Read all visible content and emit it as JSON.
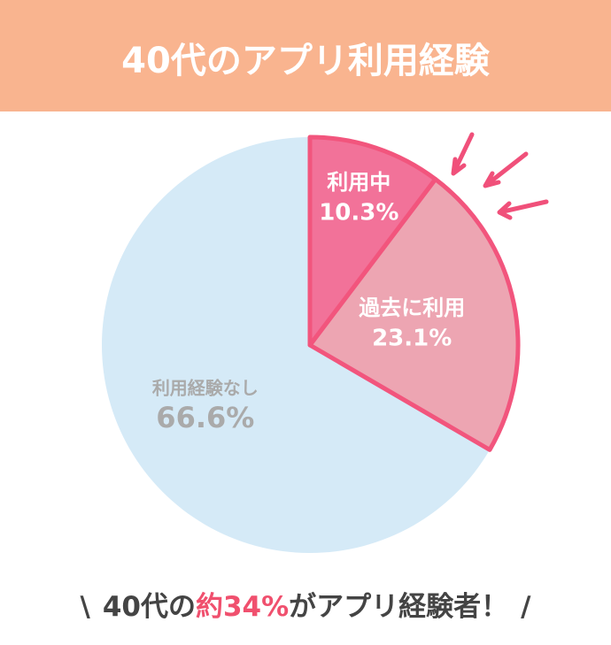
{
  "chart_data": {
    "type": "pie",
    "title": "40代のアプリ利用経験",
    "categories": [
      "利用中",
      "過去に利用",
      "利用経験なし"
    ],
    "values": [
      10.3,
      23.1,
      66.6
    ],
    "value_labels": [
      "10.3%",
      "23.1%",
      "66.6%"
    ],
    "colors": [
      "#f27299",
      "#eda5b2",
      "#d5eaf7"
    ]
  },
  "caption": {
    "open": "\\",
    "lead": "40代の",
    "highlight": "約34%",
    "tail": "がアプリ経験者！",
    "close": "/"
  }
}
